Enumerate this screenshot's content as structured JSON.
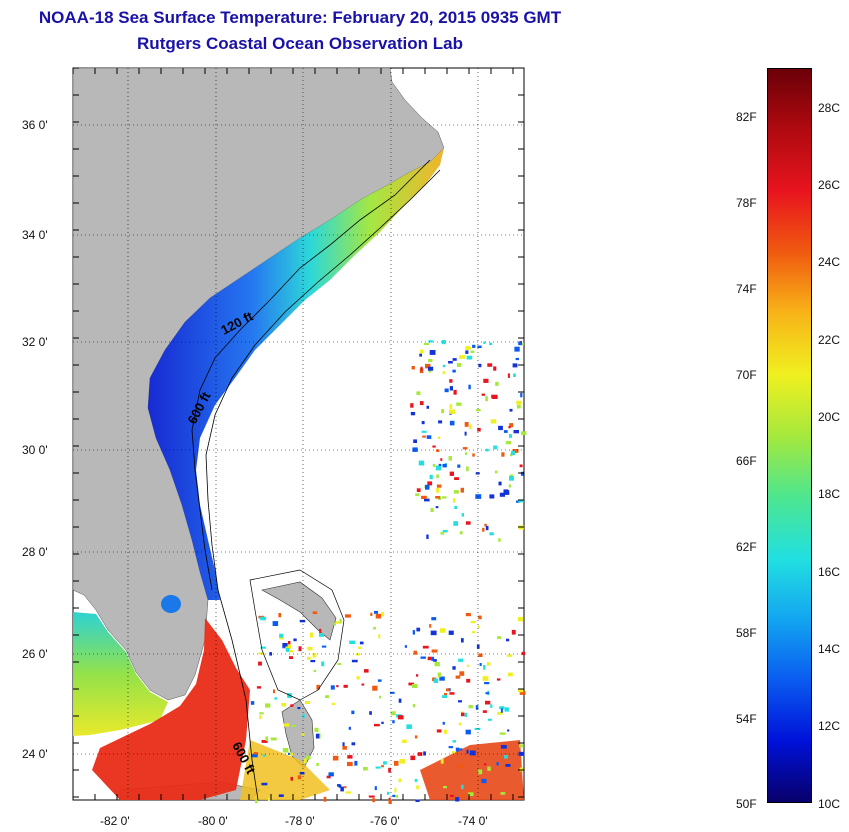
{
  "title": "NOAA-18 Sea Surface Temperature:  February 20, 2015 0935 GMT",
  "subtitle": "Rutgers Coastal Ocean Observation Lab",
  "lat_ticks": [
    "36 0'",
    "34 0'",
    "32 0'",
    "30 0'",
    "28 0'",
    "26 0'",
    "24 0'"
  ],
  "lon_ticks": [
    "-82 0'",
    "-80 0'",
    "-78 0'",
    "-76 0'",
    "-74 0'"
  ],
  "contour_labels": [
    "120 ft",
    "600 ft",
    "600 ft"
  ],
  "colorbar": {
    "fahrenheit_labels": [
      "82F",
      "78F",
      "74F",
      "70F",
      "66F",
      "62F",
      "58F",
      "54F",
      "50F"
    ],
    "celsius_labels": [
      "28C",
      "26C",
      "24C",
      "22C",
      "20C",
      "18C",
      "16C",
      "14C",
      "12C",
      "10C"
    ],
    "range_c": [
      10,
      29
    ],
    "colors": [
      "#08006b",
      "#0011d8",
      "#0a5cf0",
      "#13a6f0",
      "#22e0e0",
      "#4ee68e",
      "#a6e83c",
      "#f0f020",
      "#f8b418",
      "#f05a10",
      "#e8141e",
      "#b00a10",
      "#6b0008"
    ]
  },
  "colors": {
    "land": "#b8b8b8",
    "title": "#1a12a8",
    "cold_shelf": "#1233d8",
    "warm_stream": "#e82c18"
  }
}
